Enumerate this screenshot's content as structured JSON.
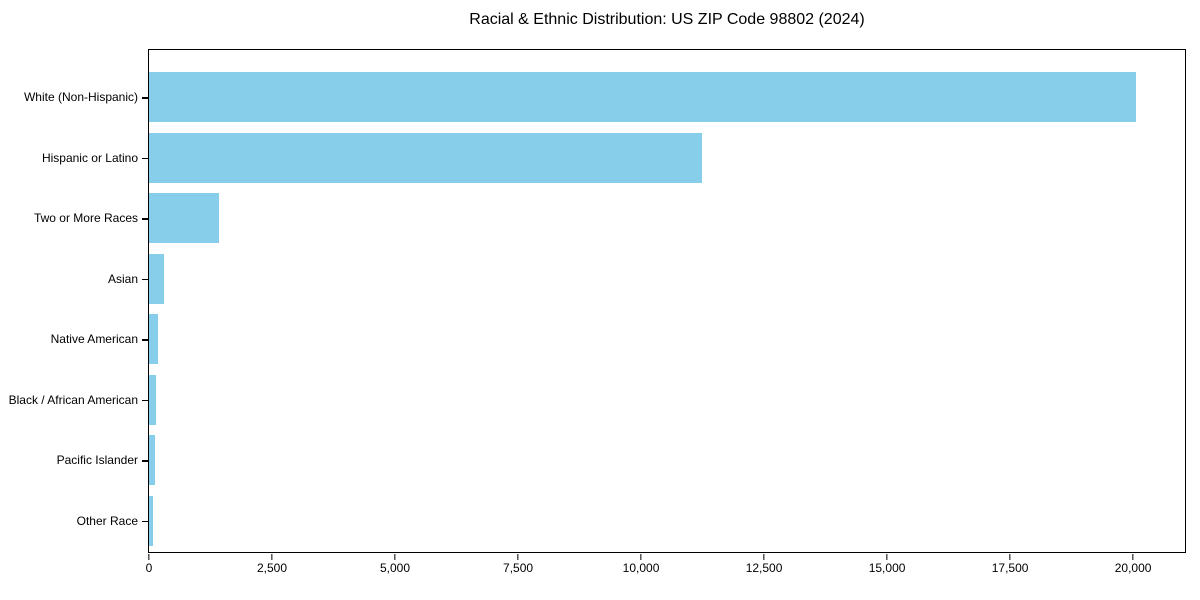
{
  "chart_data": {
    "type": "bar",
    "orientation": "horizontal",
    "title": "Racial & Ethnic Distribution: US ZIP Code 98802 (2024)",
    "categories": [
      "White (Non-Hispanic)",
      "Hispanic or Latino",
      "Two or More Races",
      "Asian",
      "Native American",
      "Black / African American",
      "Pacific Islander",
      "Other Race"
    ],
    "values": [
      20050,
      11230,
      1430,
      315,
      180,
      145,
      120,
      80
    ],
    "xlabel": "",
    "ylabel": "",
    "xlim": [
      0,
      21055
    ],
    "x_ticks": [
      0,
      2500,
      5000,
      7500,
      10000,
      12500,
      15000,
      17500,
      20000
    ],
    "x_tick_labels": [
      "0",
      "2,500",
      "5,000",
      "7,500",
      "10,000",
      "12,500",
      "15,000",
      "17,500",
      "20,000"
    ],
    "grid": false,
    "legend": "none",
    "colors": {
      "bar": "#87CEEB",
      "spine": "#000000",
      "text": "#000000",
      "background": "#ffffff"
    }
  }
}
